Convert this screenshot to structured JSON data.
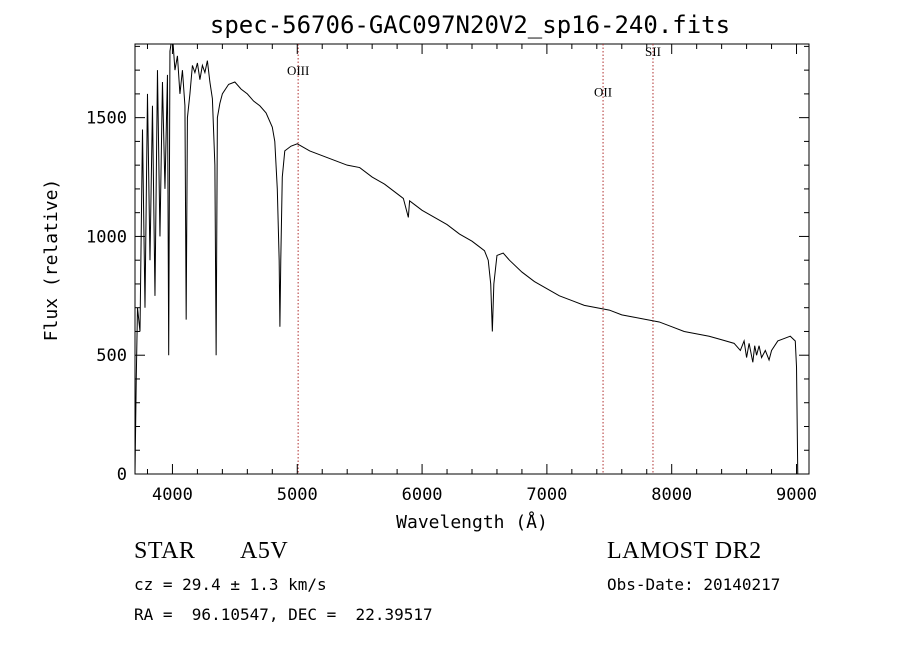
{
  "chart_data": {
    "type": "line",
    "title": "spec-56706-GAC097N20V2_sp16-240.fits",
    "xlabel": "Wavelength (Å)",
    "ylabel": "Flux (relative)",
    "xlim": [
      3700,
      9100
    ],
    "ylim": [
      0,
      1810
    ],
    "xticks": [
      4000,
      5000,
      6000,
      7000,
      8000,
      9000
    ],
    "yticks": [
      0,
      500,
      1000,
      1500
    ],
    "grid": false,
    "series": [
      {
        "color": "#000000",
        "x": [
          3700,
          3710,
          3720,
          3740,
          3760,
          3780,
          3800,
          3820,
          3840,
          3860,
          3880,
          3900,
          3920,
          3940,
          3960,
          3970,
          3980,
          4000,
          4020,
          4040,
          4060,
          4080,
          4100,
          4110,
          4120,
          4140,
          4160,
          4180,
          4200,
          4220,
          4240,
          4260,
          4280,
          4300,
          4320,
          4340,
          4350,
          4360,
          4380,
          4400,
          4450,
          4500,
          4550,
          4600,
          4650,
          4700,
          4750,
          4800,
          4820,
          4840,
          4855,
          4861,
          4868,
          4880,
          4900,
          4950,
          5000,
          5100,
          5200,
          5300,
          5400,
          5500,
          5600,
          5700,
          5800,
          5850,
          5890,
          5900,
          5950,
          6000,
          6100,
          6200,
          6300,
          6400,
          6450,
          6500,
          6530,
          6550,
          6563,
          6575,
          6600,
          6650,
          6700,
          6800,
          6900,
          7000,
          7100,
          7200,
          7300,
          7400,
          7500,
          7600,
          7700,
          7800,
          7900,
          8000,
          8100,
          8200,
          8300,
          8400,
          8500,
          8550,
          8580,
          8600,
          8620,
          8650,
          8665,
          8680,
          8700,
          8720,
          8750,
          8780,
          8800,
          8850,
          8900,
          8950,
          8990,
          9000,
          9010
        ],
        "y": [
          0,
          400,
          700,
          600,
          1450,
          700,
          1600,
          900,
          1550,
          750,
          1700,
          1000,
          1650,
          1200,
          1680,
          500,
          1780,
          1850,
          1700,
          1760,
          1600,
          1700,
          1550,
          650,
          1500,
          1600,
          1720,
          1690,
          1730,
          1660,
          1720,
          1690,
          1740,
          1650,
          1580,
          1300,
          500,
          1500,
          1560,
          1600,
          1640,
          1650,
          1620,
          1600,
          1570,
          1550,
          1520,
          1460,
          1400,
          1200,
          900,
          620,
          900,
          1250,
          1360,
          1380,
          1390,
          1360,
          1340,
          1320,
          1300,
          1290,
          1250,
          1220,
          1180,
          1160,
          1080,
          1150,
          1130,
          1110,
          1080,
          1050,
          1010,
          980,
          960,
          940,
          900,
          800,
          600,
          800,
          920,
          930,
          900,
          850,
          810,
          780,
          750,
          730,
          710,
          700,
          690,
          670,
          660,
          650,
          640,
          620,
          600,
          590,
          580,
          565,
          550,
          520,
          560,
          490,
          550,
          470,
          540,
          500,
          540,
          490,
          520,
          480,
          520,
          560,
          570,
          580,
          560,
          450,
          0
        ]
      }
    ],
    "annotations": [
      {
        "label": "OIII",
        "x": 5007,
        "label_y": 1680
      },
      {
        "label": "OII",
        "x": 7450,
        "label_y": 1590
      },
      {
        "label": "SII",
        "x": 7850,
        "label_y": 1760
      }
    ]
  },
  "footer": {
    "object_type": "STAR",
    "spectral_class": "A5V",
    "redshift_line": "cz = 29.4 ± 1.3 km/s",
    "coords_line": "RA =  96.10547, DEC =  22.39517",
    "survey": "LAMOST DR2",
    "obs_date_line": "Obs-Date: 20140217"
  }
}
